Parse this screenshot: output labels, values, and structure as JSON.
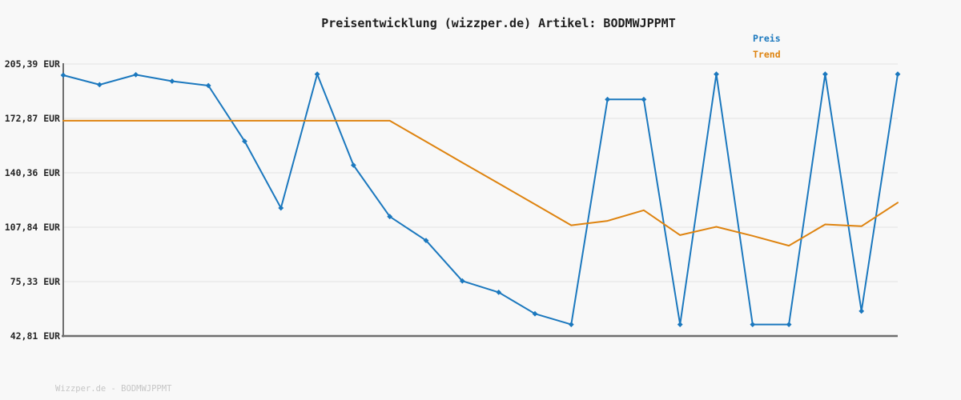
{
  "title": "Preisentwicklung (wizzper.de) Artikel: BODMWJPPMT",
  "footer": "Wizzper.de - BODMWJPPMT",
  "colors": {
    "background": "#f8f8f8",
    "grid": "#e9e9e9",
    "axis": "#6e6e6e",
    "title_text": "#1f1f1f",
    "tick_text": "#262626",
    "footer_text": "#c6c6c6",
    "preis": "#1b78be",
    "trend": "#de830f"
  },
  "chart_data": {
    "type": "line",
    "title": "Preisentwicklung (wizzper.de) Artikel: BODMWJPPMT",
    "grid": true,
    "legend_position": "top-right",
    "x_axis": {
      "tick_labels_visible": false,
      "points": 24
    },
    "y_axis": {
      "unit": "EUR",
      "range": [
        42.81,
        205.39
      ],
      "ticks": [
        205.39,
        172.87,
        140.36,
        107.84,
        75.33,
        42.81
      ],
      "tick_labels": [
        "205,39 EUR",
        "172,87 EUR",
        "140,36 EUR",
        "107,84 EUR",
        "75,33 EUR",
        "42,81 EUR"
      ]
    },
    "series": [
      {
        "name": "Preis",
        "color": "#1b78be",
        "marker": "diamond",
        "values": [
          198.7,
          193.0,
          199.0,
          195.1,
          192.5,
          159.2,
          119.3,
          199.3,
          144.9,
          114.2,
          99.9,
          75.7,
          68.9,
          56.1,
          49.7,
          184.2,
          184.2,
          49.7,
          199.3,
          49.7,
          49.7,
          199.3,
          57.7,
          199.3
        ]
      },
      {
        "name": "Trend",
        "color": "#de830f",
        "marker": "none",
        "values": [
          171.5,
          171.5,
          171.5,
          171.5,
          171.5,
          171.5,
          171.5,
          171.5,
          171.5,
          171.5,
          159.0,
          146.5,
          134.0,
          121.5,
          109.0,
          111.6,
          118.0,
          103.1,
          108.1,
          102.7,
          96.8,
          109.5,
          108.4,
          122.5
        ]
      }
    ]
  }
}
